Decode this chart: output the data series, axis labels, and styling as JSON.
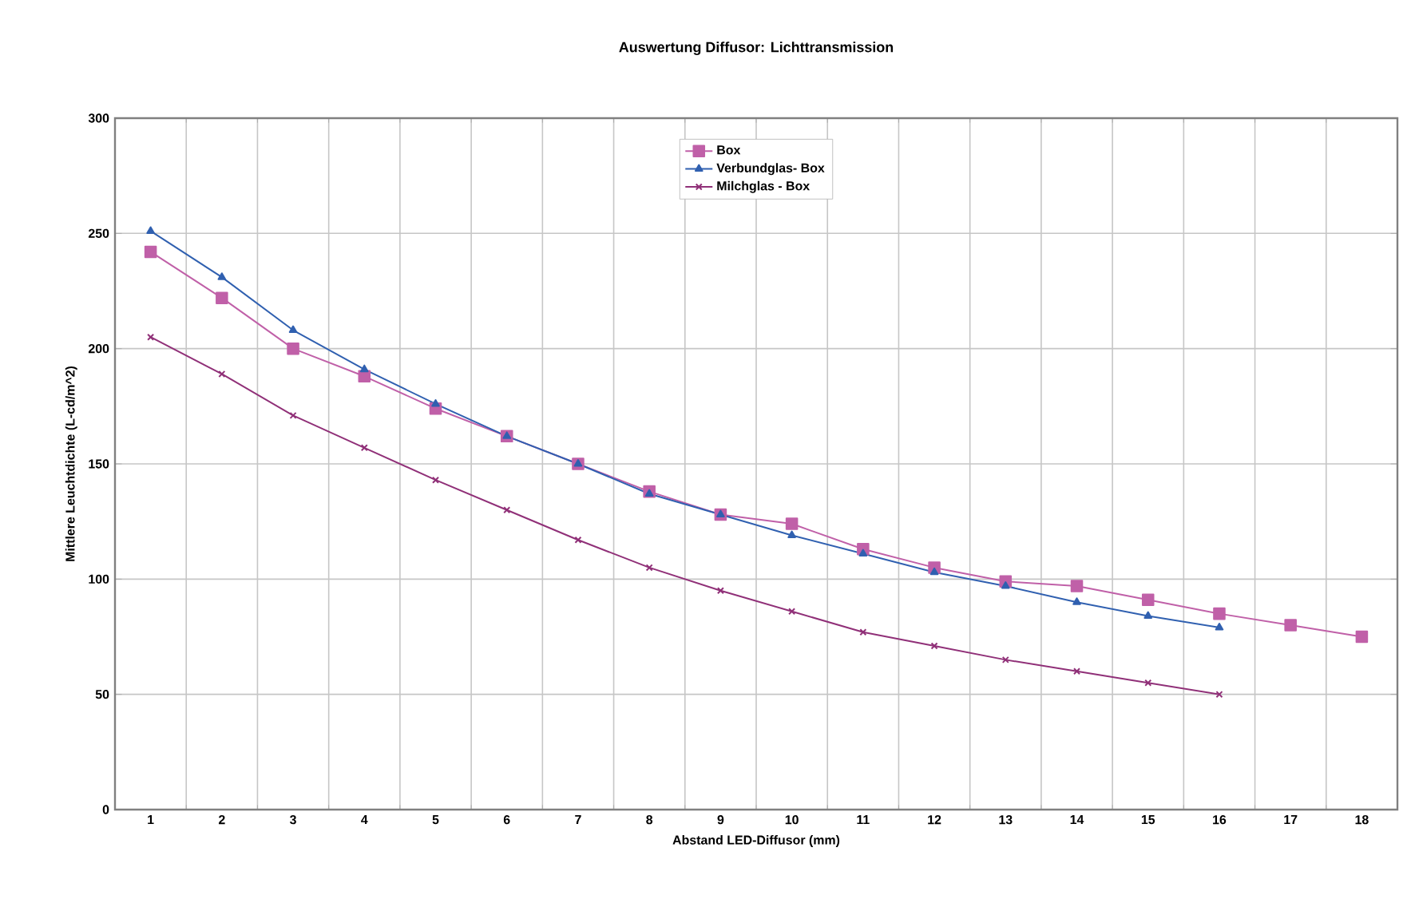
{
  "chart_data": {
    "type": "line",
    "title": "Auswertung Diffusor: Lichttransmission",
    "xlabel": "Abstand LED-Diffusor (mm)",
    "ylabel": "Mittlere Leuchtdichte (L-cd/m^2)",
    "categories": [
      "1",
      "2",
      "3",
      "4",
      "5",
      "6",
      "7",
      "8",
      "9",
      "10",
      "11",
      "12",
      "13",
      "14",
      "15",
      "16",
      "17",
      "18"
    ],
    "ylim": [
      0,
      300
    ],
    "yticks": [
      0,
      50,
      100,
      150,
      200,
      250,
      300
    ],
    "grid": true,
    "legend": "top",
    "series": [
      {
        "name": "Box",
        "color": "#c060a8",
        "marker": "square",
        "values": [
          242,
          222,
          200,
          188,
          174,
          162,
          150,
          138,
          128,
          124,
          113,
          105,
          99,
          97,
          91,
          85,
          80,
          75
        ]
      },
      {
        "name": "Verbundglas- Box",
        "color": "#3060b0",
        "marker": "triangle",
        "values": [
          251,
          231,
          208,
          191,
          176,
          162,
          150,
          137,
          128,
          119,
          111,
          103,
          97,
          90,
          84,
          79,
          null,
          null
        ]
      },
      {
        "name": "Milchglas - Box",
        "color": "#903078",
        "marker": "cross",
        "values": [
          205,
          189,
          171,
          157,
          143,
          130,
          117,
          105,
          95,
          86,
          77,
          71,
          65,
          60,
          55,
          50,
          null,
          null
        ]
      }
    ]
  }
}
